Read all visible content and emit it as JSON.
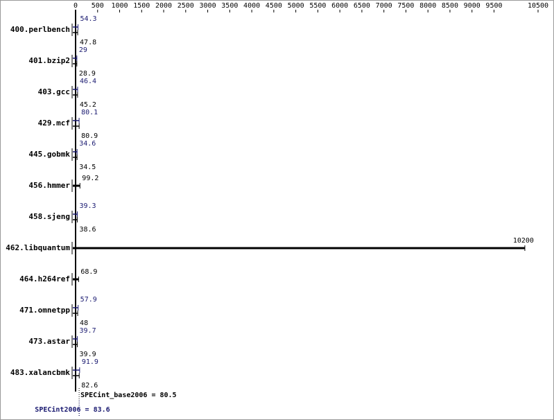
{
  "chart_data": {
    "type": "bar",
    "categories": [
      "400.perlbench",
      "401.bzip2",
      "403.gcc",
      "429.mcf",
      "445.gobmk",
      "456.hmmer",
      "458.sjeng",
      "462.libquantum",
      "464.h264ref",
      "471.omnetpp",
      "473.astar",
      "483.xalancbmk"
    ],
    "series": [
      {
        "color": "#191970",
        "values": [
          54.3,
          29.0,
          46.4,
          80.1,
          34.6,
          null,
          39.3,
          null,
          null,
          57.9,
          39.7,
          91.9
        ]
      },
      {
        "color": "#000000",
        "values": [
          47.8,
          28.9,
          45.2,
          80.9,
          34.5,
          99.2,
          38.6,
          10200,
          68.9,
          48.0,
          39.9,
          82.6
        ]
      }
    ],
    "xlim": [
      0,
      10500
    ],
    "xticks": [
      0,
      500,
      1000,
      1500,
      2000,
      2500,
      3000,
      3500,
      4000,
      4500,
      5000,
      5500,
      6000,
      6500,
      7000,
      7500,
      8000,
      8500,
      9000,
      9500,
      10500
    ],
    "summary": [
      {
        "label": "SPECint_base2006 = 80.5",
        "value": 80.5,
        "color": "#000000"
      },
      {
        "label": "SPECint2006 = 83.6",
        "value": 83.6,
        "color": "#191970"
      }
    ]
  }
}
